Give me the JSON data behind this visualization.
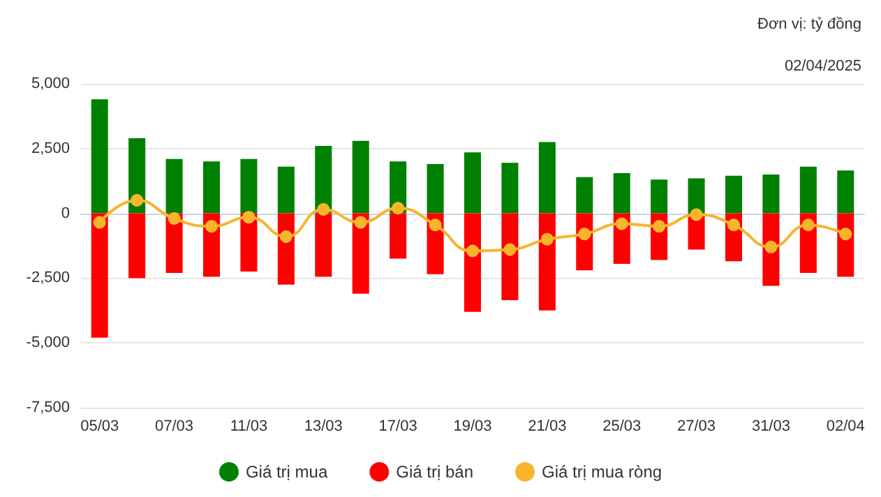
{
  "chart_data": {
    "type": "bar",
    "stacked": true,
    "categories": [
      "05/03",
      null,
      "07/03",
      null,
      "11/03",
      null,
      "13/03",
      null,
      "17/03",
      null,
      "19/03",
      null,
      "21/03",
      null,
      "25/03",
      null,
      "27/03",
      null,
      "31/03",
      null,
      "02/04"
    ],
    "series": [
      {
        "name": "Giá trị mua",
        "color": "#008000",
        "values": [
          4400,
          2900,
          2100,
          2000,
          2100,
          1800,
          2600,
          2800,
          2000,
          1900,
          2350,
          1950,
          2750,
          1400,
          1550,
          1300,
          1350,
          1450,
          1500,
          1800,
          1650
        ]
      },
      {
        "name": "Giá trị bán",
        "color": "#ff0000",
        "values": [
          -4800,
          -2500,
          -2300,
          -2450,
          -2250,
          -2750,
          -2450,
          -3100,
          -1750,
          -2350,
          -3800,
          -3350,
          -3750,
          -2200,
          -1950,
          -1800,
          -1400,
          -1850,
          -2800,
          -2300,
          -2450
        ]
      },
      {
        "name": "Giá trị mua ròng",
        "type": "line",
        "color": "#f7b52c",
        "values": [
          -350,
          500,
          -200,
          -500,
          -150,
          -900,
          150,
          -350,
          200,
          -450,
          -1450,
          -1400,
          -1000,
          -800,
          -400,
          -500,
          -50,
          -450,
          -1300,
          -450,
          -800
        ]
      }
    ],
    "ylim": [
      -7500,
      5000
    ],
    "yticks": [
      {
        "value": -7500,
        "label": "-7,500"
      },
      {
        "value": -5000,
        "label": "-5,000"
      },
      {
        "value": -2500,
        "label": "-2,500"
      },
      0,
      {
        "value": 2500,
        "label": "2,500"
      },
      {
        "value": 5000,
        "label": "5,000"
      }
    ],
    "grid": "y",
    "legend": "bottom",
    "marker": "circle",
    "line_style": "solid",
    "annotations": [
      "Đơn vị: tỷ đồng",
      "02/04/2025"
    ]
  }
}
